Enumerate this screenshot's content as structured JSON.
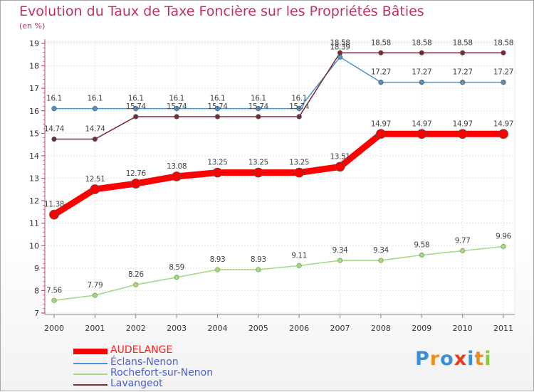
{
  "chart_data": {
    "type": "line",
    "title": "Evolution du Taux de Taxe Foncière sur les Propriétés Bâties",
    "unit_label": "(en %)",
    "x": [
      "2000",
      "2001",
      "2002",
      "2003",
      "2004",
      "2005",
      "2006",
      "2007",
      "2008",
      "2009",
      "2010",
      "2011"
    ],
    "ylim": [
      7,
      19
    ],
    "yticks": [
      "7",
      "8",
      "9",
      "10",
      "11",
      "12",
      "13",
      "14",
      "15",
      "16",
      "17",
      "18",
      "19"
    ],
    "series": [
      {
        "name": "AUDELANGE",
        "color": "#ff0000",
        "values": [
          11.38,
          12.51,
          12.76,
          13.08,
          13.25,
          13.25,
          13.25,
          13.51,
          14.97,
          14.97,
          14.97,
          14.97
        ],
        "labels": [
          "11.38",
          "12.51",
          "12.76",
          "13.08",
          "13.25",
          "13.25",
          "13.25",
          "13.51",
          "14.97",
          "14.97",
          "14.97",
          "14.97"
        ]
      },
      {
        "name": "Éclans-Nenon",
        "color": "#4f94cd",
        "values": [
          16.1,
          16.1,
          16.1,
          16.1,
          16.1,
          16.1,
          16.1,
          18.39,
          17.27,
          17.27,
          17.27,
          17.27
        ],
        "labels": [
          "16.1",
          "16.1",
          "16.1",
          "16.1",
          "16.1",
          "16.1",
          "16.1",
          "18.39",
          "17.27",
          "17.27",
          "17.27",
          "17.27"
        ]
      },
      {
        "name": "Rochefort-sur-Nenon",
        "color": "#a8d888",
        "values": [
          7.56,
          7.79,
          8.26,
          8.59,
          8.93,
          8.93,
          9.11,
          9.34,
          9.34,
          9.58,
          9.77,
          9.96
        ],
        "labels": [
          "7.56",
          "7.79",
          "8.26",
          "8.59",
          "8.93",
          "8.93",
          "9.11",
          "9.34",
          "9.34",
          "9.58",
          "9.77",
          "9.96"
        ]
      },
      {
        "name": "Lavangeot",
        "color": "#7a2a32",
        "values": [
          14.74,
          14.74,
          15.74,
          15.74,
          15.74,
          15.74,
          15.74,
          18.58,
          18.58,
          18.58,
          18.58,
          18.58
        ],
        "labels": [
          "14.74",
          "14.74",
          "15.74",
          "15.74",
          "15.74",
          "15.74",
          "15.74",
          "18.58",
          "18.58",
          "18.58",
          "18.58",
          "18.58"
        ]
      }
    ]
  },
  "legend": {
    "items": [
      "AUDELANGE",
      "Éclans-Nenon",
      "Rochefort-sur-Nenon",
      "Lavangeot"
    ],
    "colors": [
      "#ff0000",
      "#4f94cd",
      "#a8d888",
      "#7a2a32"
    ]
  },
  "brand": {
    "letters": [
      "P",
      "r",
      "o",
      "x",
      "i",
      "t",
      "i"
    ],
    "colors": [
      "#3c8ed6",
      "#f08c1c",
      "#3c8ed6",
      "#e83a1c",
      "#3c8ed6",
      "#f08c1c",
      "#8cc83c"
    ]
  }
}
